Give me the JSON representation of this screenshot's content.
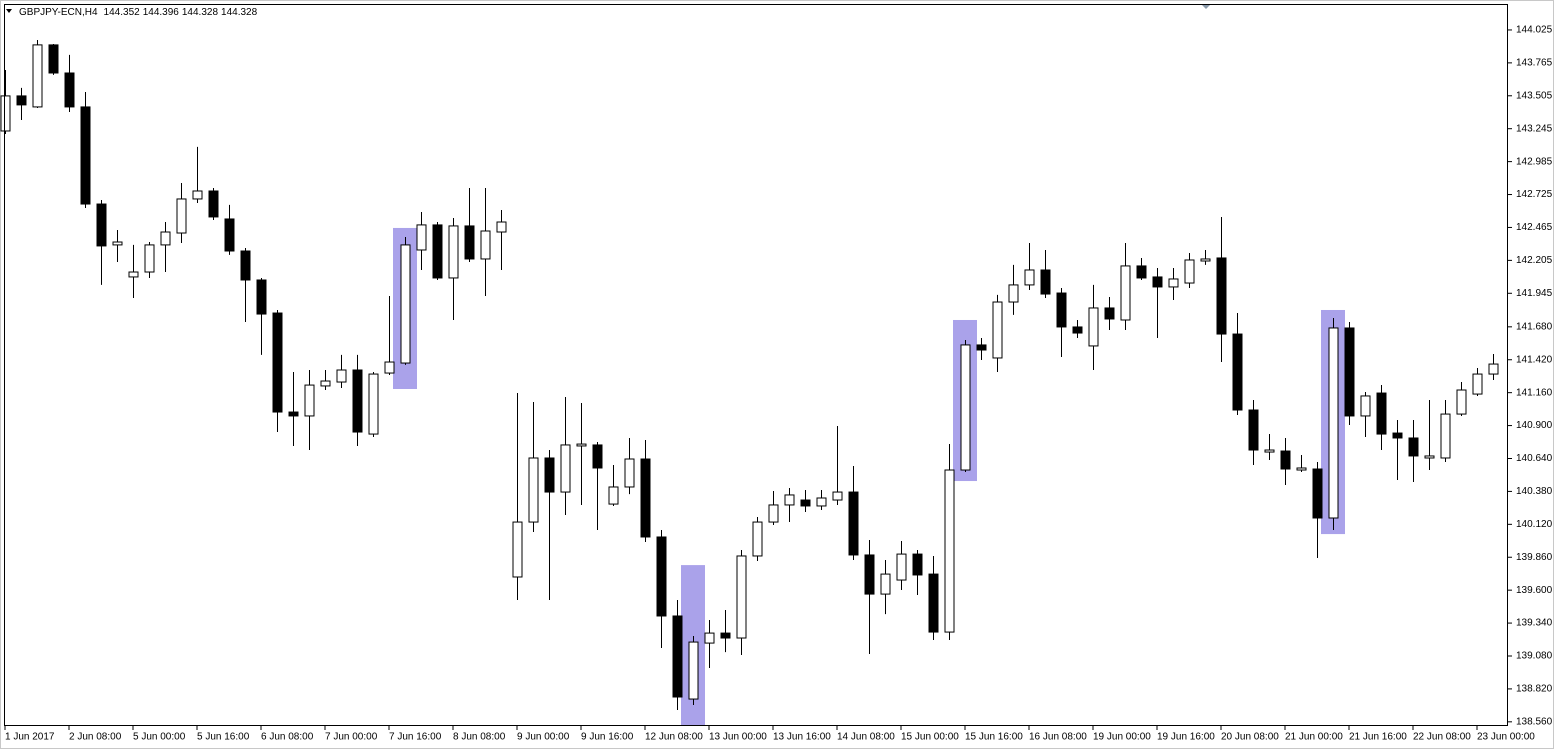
{
  "chart_data": {
    "type": "candlestick",
    "title": "GBPJPY-ECN,H4",
    "header_values": [
      144.352,
      144.396,
      144.328,
      144.328
    ],
    "categories": [
      "1 Jun 2017",
      null,
      null,
      null,
      "2 Jun 08:00",
      null,
      null,
      null,
      "5 Jun 00:00",
      null,
      null,
      null,
      "5 Jun 16:00",
      null,
      null,
      null,
      "6 Jun 08:00",
      null,
      null,
      null,
      "7 Jun 00:00",
      null,
      null,
      null,
      "7 Jun 16:00",
      null,
      null,
      null,
      "8 Jun 08:00",
      null,
      null,
      null,
      "9 Jun 00:00",
      null,
      null,
      null,
      "9 Jun 16:00",
      null,
      null,
      null,
      "12 Jun 08:00",
      null,
      null,
      null,
      "13 Jun 00:00",
      null,
      null,
      null,
      "13 Jun 16:00",
      null,
      null,
      null,
      "14 Jun 08:00",
      null,
      null,
      null,
      "15 Jun 00:00",
      null,
      null,
      null,
      "15 Jun 16:00",
      null,
      null,
      null,
      "16 Jun 08:00",
      null,
      null,
      null,
      "19 Jun 00:00",
      null,
      null,
      null,
      "19 Jun 16:00",
      null,
      null,
      null,
      "20 Jun 08:00",
      null,
      null,
      null,
      "21 Jun 00:00",
      null,
      null,
      null,
      "21 Jun 16:00",
      null,
      null,
      null,
      "22 Jun 08:00",
      null,
      null,
      null,
      "23 Jun 00:00",
      null
    ],
    "open": [
      143.227,
      143.504,
      143.417,
      143.907,
      143.685,
      143.417,
      142.65,
      142.327,
      142.074,
      142.113,
      142.327,
      142.421,
      142.69,
      142.753,
      142.532,
      142.279,
      142.05,
      141.789,
      141.007,
      140.976,
      141.213,
      141.244,
      141.339,
      140.833,
      141.315,
      141.394,
      142.287,
      142.485,
      142.066,
      142.477,
      142.216,
      142.429,
      139.704,
      140.138,
      140.644,
      140.375,
      140.739,
      140.747,
      140.28,
      140.415,
      140.636,
      140.02,
      139.396,
      138.74,
      139.182,
      139.261,
      139.222,
      139.87,
      140.138,
      140.273,
      140.312,
      140.265,
      140.312,
      140.375,
      139.878,
      139.569,
      139.68,
      139.885,
      139.727,
      139.269,
      140.549,
      141.537,
      141.434,
      141.876,
      142.011,
      142.129,
      141.947,
      141.679,
      141.529,
      141.829,
      141.734,
      142.161,
      142.074,
      141.995,
      142.026,
      142.2,
      142.224,
      141.623,
      141.023,
      140.691,
      140.699,
      140.549,
      140.557,
      140.17,
      141.671,
      140.976,
      141.157,
      140.841,
      140.802,
      140.644,
      140.644,
      140.991,
      141.149,
      141.307
    ],
    "high": [
      143.709,
      143.567,
      143.946,
      143.914,
      143.828,
      143.535,
      142.682,
      142.445,
      142.327,
      142.35,
      142.508,
      142.816,
      143.101,
      142.777,
      142.643,
      142.303,
      142.066,
      141.813,
      141.323,
      141.339,
      141.339,
      141.458,
      141.458,
      141.323,
      141.924,
      142.39,
      142.587,
      142.508,
      142.54,
      142.777,
      142.777,
      142.603,
      141.157,
      141.086,
      140.707,
      141.126,
      141.078,
      140.77,
      140.589,
      140.802,
      140.786,
      140.075,
      139.522,
      139.238,
      139.364,
      139.443,
      139.917,
      140.178,
      140.383,
      140.407,
      140.391,
      140.391,
      140.897,
      140.581,
      139.996,
      139.838,
      139.988,
      139.917,
      139.87,
      140.754,
      141.576,
      141.592,
      141.932,
      142.169,
      142.342,
      142.287,
      141.987,
      141.734,
      142.011,
      141.916,
      142.342,
      142.224,
      142.145,
      142.145,
      142.263,
      142.287,
      142.548,
      141.789,
      141.102,
      140.833,
      140.802,
      140.668,
      140.612,
      141.75,
      141.718,
      141.165,
      141.221,
      140.944,
      140.944,
      141.102,
      141.102,
      141.244,
      141.355,
      141.465
    ],
    "low": [
      143.203,
      143.314,
      143.409,
      143.67,
      143.377,
      142.619,
      142.011,
      142.192,
      141.908,
      142.066,
      142.113,
      142.342,
      142.658,
      142.524,
      142.248,
      141.718,
      141.458,
      140.849,
      140.739,
      140.707,
      141.181,
      141.197,
      140.739,
      140.81,
      141.3,
      141.379,
      142.129,
      142.05,
      141.734,
      142.192,
      141.924,
      142.129,
      139.522,
      140.059,
      139.522,
      140.194,
      140.273,
      140.075,
      140.265,
      140.359,
      139.98,
      139.143,
      138.653,
      138.693,
      138.985,
      139.111,
      139.088,
      139.83,
      140.115,
      140.138,
      140.217,
      140.233,
      140.273,
      139.838,
      139.096,
      139.411,
      139.601,
      139.562,
      139.206,
      139.206,
      140.533,
      141.418,
      141.323,
      141.774,
      141.971,
      141.908,
      141.442,
      141.592,
      141.339,
      141.655,
      141.655,
      142.05,
      141.592,
      141.892,
      141.987,
      142.169,
      141.402,
      140.984,
      140.589,
      140.628,
      140.431,
      140.533,
      139.854,
      140.075,
      140.905,
      140.81,
      140.707,
      140.47,
      140.454,
      140.549,
      140.612,
      140.976,
      141.134,
      141.26
    ],
    "close": [
      143.504,
      143.433,
      143.907,
      143.685,
      143.417,
      142.65,
      142.319,
      142.35,
      142.113,
      142.327,
      142.429,
      142.69,
      142.753,
      142.548,
      142.279,
      142.05,
      141.781,
      141.007,
      140.976,
      141.22,
      141.252,
      141.339,
      140.849,
      141.307,
      141.402,
      142.327,
      142.485,
      142.066,
      142.477,
      142.216,
      142.437,
      142.508,
      140.138,
      140.644,
      140.375,
      140.747,
      140.754,
      140.565,
      140.415,
      140.636,
      140.02,
      139.396,
      138.756,
      139.19,
      139.261,
      139.222,
      139.87,
      140.138,
      140.273,
      140.352,
      140.265,
      140.328,
      140.375,
      139.878,
      139.569,
      139.727,
      139.885,
      139.72,
      139.269,
      140.549,
      141.537,
      141.497,
      141.876,
      142.011,
      142.129,
      141.939,
      141.679,
      141.631,
      141.829,
      141.742,
      142.161,
      142.066,
      141.995,
      142.058,
      142.208,
      142.216,
      141.623,
      141.023,
      140.707,
      140.707,
      140.557,
      140.565,
      140.17,
      141.671,
      140.976,
      141.134,
      140.833,
      140.802,
      140.66,
      140.66,
      140.991,
      141.181,
      141.307,
      141.386
    ],
    "up_color": "#ffffff",
    "down_color": "#000000",
    "highlight_color": "#aaa2ea",
    "highlights": [
      {
        "category_index": 25,
        "high": 142.461,
        "low": 141.189
      },
      {
        "category_index": 43,
        "high": 139.798,
        "low": 138.527
      },
      {
        "category_index": 60,
        "high": 141.734,
        "low": 140.462
      },
      {
        "category_index": 83,
        "high": 141.813,
        "low": 140.043
      }
    ],
    "ylim": [
      138.527,
      144.23
    ],
    "yticks": [
      144.025,
      143.765,
      143.505,
      143.245,
      142.985,
      142.725,
      142.465,
      142.205,
      141.945,
      {
        "value": 141.68,
        "label": "141.680"
      },
      {
        "value": 141.42,
        "label": "141.420"
      },
      {
        "value": 141.16,
        "label": "141.160"
      },
      {
        "value": 140.9,
        "label": "140.900"
      },
      {
        "value": 140.64,
        "label": "140.640"
      },
      {
        "value": 140.38,
        "label": "140.380"
      },
      {
        "value": 140.12,
        "label": "140.120"
      },
      {
        "value": 139.86,
        "label": "139.860"
      },
      {
        "value": 139.6,
        "label": "139.600"
      },
      {
        "value": 139.34,
        "label": "139.340"
      },
      {
        "value": 139.08,
        "label": "139.080"
      },
      {
        "value": 138.82,
        "label": "138.820"
      },
      {
        "value": 138.56,
        "label": "138.560"
      }
    ]
  }
}
